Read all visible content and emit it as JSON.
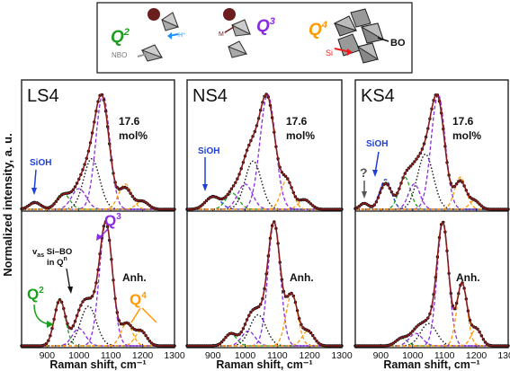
{
  "figure": {
    "ylabel": "Normalized intensity, a. u.",
    "xlabel": "Raman shift, cm⁻¹",
    "x_ticks": [
      900,
      1000,
      1100,
      1200,
      1300
    ],
    "xlim": [
      820,
      1300
    ],
    "colors": {
      "data": "#111111",
      "fit": "#8b1a1a",
      "Q2": "#1e9e1e",
      "Q3": "#8a2be2",
      "Q4": "#ff9900",
      "SiBO": "#111111",
      "SiOH": "#1f3fd6",
      "unknown": "#555555"
    }
  },
  "legend_box": {
    "labels": {
      "q2": "Q",
      "q2_sup": "2",
      "q3": "Q",
      "q3_sup": "3",
      "q4": "Q",
      "q4_sup": "4",
      "h": "H⁺",
      "nbo": "NBO",
      "m": "M⁺",
      "si": "Si",
      "bo": "BO"
    }
  },
  "panels": [
    {
      "id": "LS4",
      "label": "LS4",
      "top_text": [
        "17.6",
        "mol%"
      ],
      "bottom_text": "Anh.",
      "top_annotations": [
        "SiOH"
      ]
    },
    {
      "id": "NS4",
      "label": "NS4",
      "top_text": [
        "17.6",
        "mol%"
      ],
      "bottom_text": "Anh.",
      "top_annotations": [
        "SiOH"
      ]
    },
    {
      "id": "KS4",
      "label": "KS4",
      "top_text": [
        "17.6",
        "mol%"
      ],
      "bottom_text": "Anh.",
      "top_annotations": [
        "?",
        "SiOH"
      ]
    }
  ],
  "ls4_bottom_annotations": {
    "q2": "Q",
    "q2_sup": "2",
    "q3": "Q",
    "q3_sup": "3",
    "q4": "Q",
    "q4_sup": "4",
    "vas_1": "v",
    "vas_1_sub": "as",
    "vas_1_rest": " Si–BO",
    "vas_2": "in Q",
    "vas_2_sup": "n"
  },
  "chart_data": {
    "type": "line",
    "x_units": "Raman shift, cm-1",
    "ylim": [
      0,
      1
    ],
    "series_note": "Each subplot: measured spectrum (dots), total fit (solid), Gaussian components (dashed). Component peaks estimated from figure.",
    "subplots": [
      {
        "glass": "LS4",
        "condition": "17.6 mol%",
        "components": [
          {
            "band": "SiOH",
            "center": 862,
            "height": 0.07,
            "width": 40
          },
          {
            "band": "Q2",
            "center": 950,
            "height": 0.14,
            "width": 45
          },
          {
            "band": "SiBO",
            "center": 1040,
            "height": 0.44,
            "width": 55
          },
          {
            "band": "Q3",
            "center": 1075,
            "height": 1.0,
            "width": 48
          },
          {
            "band": "Q3b",
            "center": 1000,
            "height": 0.18,
            "width": 50
          },
          {
            "band": "Q4",
            "center": 1145,
            "height": 0.22,
            "width": 45
          },
          {
            "band": "Q4b",
            "center": 1200,
            "height": 0.08,
            "width": 40
          }
        ]
      },
      {
        "glass": "LS4",
        "condition": "Anh.",
        "components": [
          {
            "band": "Q2",
            "center": 940,
            "height": 0.38,
            "width": 38
          },
          {
            "band": "SiBO",
            "center": 1030,
            "height": 0.32,
            "width": 55
          },
          {
            "band": "Q3",
            "center": 1085,
            "height": 1.0,
            "width": 45
          },
          {
            "band": "Q3b",
            "center": 1000,
            "height": 0.14,
            "width": 45
          },
          {
            "band": "Q4",
            "center": 1150,
            "height": 0.18,
            "width": 40
          },
          {
            "band": "Q4b",
            "center": 1195,
            "height": 0.12,
            "width": 40
          }
        ]
      },
      {
        "glass": "NS4",
        "condition": "17.6 mol%",
        "components": [
          {
            "band": "SiOH",
            "center": 900,
            "height": 0.12,
            "width": 50
          },
          {
            "band": "Q2",
            "center": 960,
            "height": 0.14,
            "width": 45
          },
          {
            "band": "SiBO",
            "center": 1025,
            "height": 0.42,
            "width": 55
          },
          {
            "band": "Q3",
            "center": 1070,
            "height": 1.0,
            "width": 52
          },
          {
            "band": "Q3b",
            "center": 1000,
            "height": 0.22,
            "width": 50
          },
          {
            "band": "Q4",
            "center": 1130,
            "height": 0.26,
            "width": 40
          },
          {
            "band": "Q4b",
            "center": 1185,
            "height": 0.09,
            "width": 40
          }
        ]
      },
      {
        "glass": "NS4",
        "condition": "Anh.",
        "components": [
          {
            "band": "Q2",
            "center": 955,
            "height": 0.1,
            "width": 40
          },
          {
            "band": "SiBO",
            "center": 1040,
            "height": 0.25,
            "width": 55
          },
          {
            "band": "Q3",
            "center": 1090,
            "height": 1.0,
            "width": 42
          },
          {
            "band": "Q3b",
            "center": 1010,
            "height": 0.12,
            "width": 45
          },
          {
            "band": "Q4",
            "center": 1145,
            "height": 0.42,
            "width": 40
          },
          {
            "band": "Q4b",
            "center": 1195,
            "height": 0.12,
            "width": 40
          }
        ]
      },
      {
        "glass": "KS4",
        "condition": "17.6 mol%",
        "components": [
          {
            "band": "unknown",
            "center": 848,
            "height": 0.06,
            "width": 30
          },
          {
            "band": "SiOH",
            "center": 915,
            "height": 0.26,
            "width": 40
          },
          {
            "band": "Q2",
            "center": 975,
            "height": 0.28,
            "width": 40
          },
          {
            "band": "SiBO",
            "center": 1040,
            "height": 0.48,
            "width": 55
          },
          {
            "band": "Q3",
            "center": 1080,
            "height": 1.0,
            "width": 48
          },
          {
            "band": "Q3b",
            "center": 1005,
            "height": 0.22,
            "width": 40
          },
          {
            "band": "Q4",
            "center": 1150,
            "height": 0.28,
            "width": 40
          },
          {
            "band": "Q4b",
            "center": 1195,
            "height": 0.08,
            "width": 35
          }
        ]
      },
      {
        "glass": "KS4",
        "condition": "Anh.",
        "components": [
          {
            "band": "Q2",
            "center": 965,
            "height": 0.06,
            "width": 40
          },
          {
            "band": "SiBO",
            "center": 1050,
            "height": 0.18,
            "width": 55
          },
          {
            "band": "Q3",
            "center": 1095,
            "height": 1.0,
            "width": 40
          },
          {
            "band": "Q3b",
            "center": 1010,
            "height": 0.1,
            "width": 45
          },
          {
            "band": "Q4",
            "center": 1155,
            "height": 0.52,
            "width": 35
          },
          {
            "band": "Q4b",
            "center": 1200,
            "height": 0.14,
            "width": 35
          }
        ]
      }
    ]
  }
}
